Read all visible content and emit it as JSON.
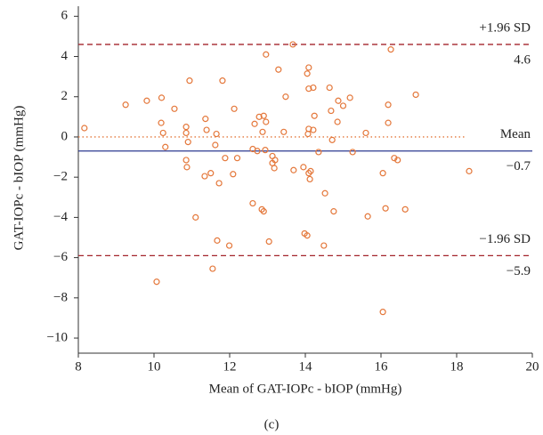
{
  "chart_data": {
    "type": "scatter",
    "x_label": "Mean of GAT-IOPc - bIOP (mmHg)",
    "y_label": "GAT-IOPc - bIOP (mmHg)",
    "caption": "(c)",
    "xlim": [
      8,
      20
    ],
    "ylim": [
      -10.75,
      6.5
    ],
    "xticks": [
      8,
      10,
      12,
      14,
      16,
      18,
      20
    ],
    "yticks": [
      6,
      4,
      2,
      0,
      {
        "value": -2,
        "label": "−2"
      },
      {
        "value": -4,
        "label": "−4"
      },
      {
        "value": -6,
        "label": "−6"
      },
      {
        "value": -8,
        "label": "−8"
      },
      {
        "value": -10,
        "label": "−10"
      }
    ],
    "series": [
      {
        "color": "#e4773a",
        "x": [
          8.16,
          9.25,
          9.81,
          10.2,
          10.19,
          10.24,
          10.3,
          10.07,
          10.54,
          10.94,
          10.85,
          10.85,
          10.9,
          10.85,
          10.87,
          11.1,
          11.36,
          11.39,
          11.34,
          11.5,
          11.65,
          11.62,
          11.72,
          11.81,
          11.88,
          11.67,
          11.55,
          11.99,
          12.12,
          12.09,
          12.2,
          12.66,
          12.78,
          12.9,
          12.87,
          12.96,
          12.94,
          12.73,
          12.61,
          13.13,
          13.13,
          13.18,
          13.2,
          12.85,
          12.9,
          12.61,
          12.96,
          13.29,
          13.48,
          13.43,
          13.67,
          13.69,
          13.95,
          14.05,
          13.98,
          13.04,
          14.09,
          14.05,
          14.09,
          14.21,
          14.09,
          14.07,
          14.21,
          14.24,
          14.35,
          14.14,
          14.12,
          14.09,
          14.52,
          14.49,
          14.64,
          14.68,
          14.71,
          14.75,
          14.87,
          14.85,
          15.0,
          15.18,
          15.25,
          15.6,
          15.65,
          16.19,
          16.19,
          16.05,
          16.12,
          16.05,
          16.26,
          16.35,
          16.44,
          16.64,
          16.92,
          18.33
        ],
        "y": [
          0.44,
          1.6,
          1.8,
          1.95,
          0.7,
          0.2,
          -0.5,
          -7.2,
          1.4,
          2.8,
          0.5,
          0.2,
          -0.25,
          -1.15,
          -1.5,
          -4.0,
          0.9,
          0.35,
          -1.95,
          -1.8,
          0.15,
          -0.4,
          -2.3,
          2.8,
          -1.05,
          -5.15,
          -6.55,
          -5.4,
          1.4,
          -1.85,
          -1.05,
          0.65,
          1.0,
          1.05,
          0.25,
          0.75,
          -0.65,
          -0.7,
          -0.6,
          -0.95,
          -1.3,
          -1.55,
          -1.15,
          -3.6,
          -3.7,
          -3.3,
          4.1,
          3.35,
          2.0,
          0.25,
          4.6,
          -1.65,
          -1.5,
          -4.9,
          -4.8,
          -5.2,
          3.45,
          3.15,
          2.4,
          2.45,
          0.4,
          0.15,
          0.35,
          1.05,
          -0.75,
          -1.7,
          -2.1,
          -1.8,
          -2.8,
          -5.4,
          2.45,
          1.3,
          -0.15,
          -3.7,
          1.8,
          0.75,
          1.55,
          1.95,
          -0.75,
          0.2,
          -3.95,
          1.6,
          0.7,
          -1.8,
          -3.55,
          -8.7,
          4.35,
          -1.05,
          -1.15,
          -3.6,
          2.1,
          -1.7
        ]
      }
    ],
    "zero_line": {
      "y": 0,
      "x": [
        8,
        18.2
      ],
      "color": "#e4773a"
    },
    "reference_lines": [
      {
        "name": "+1.96 SD",
        "value": 4.6,
        "color": "#a3242c",
        "style": "dashed"
      },
      {
        "name": "Mean",
        "value": -0.7,
        "value_label": "−0.7",
        "color": "#2b3990",
        "style": "solid"
      },
      {
        "name": "−1.96 SD",
        "value": -5.9,
        "value_label": "−5.9",
        "color": "#a3242c",
        "style": "dashed"
      }
    ]
  }
}
